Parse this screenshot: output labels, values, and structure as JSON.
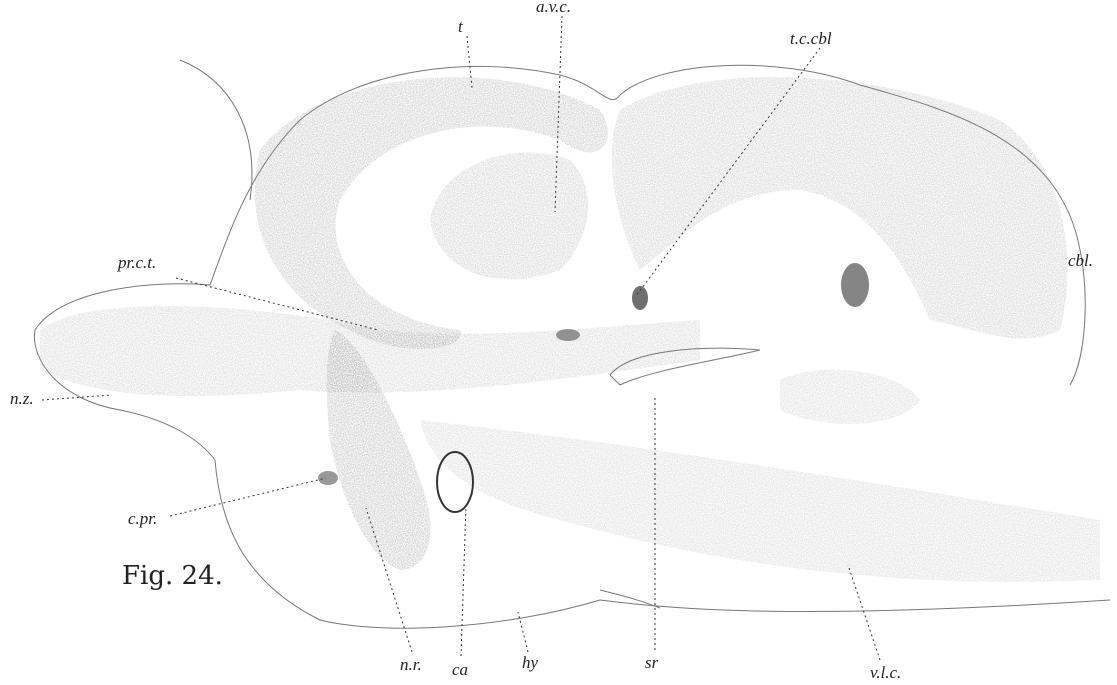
{
  "figure": {
    "caption": "Fig. 24."
  },
  "labels": [
    {
      "text": "t"
    },
    {
      "text": "a.v.c."
    },
    {
      "text": "t.c.cbl"
    },
    {
      "text": "cbl."
    },
    {
      "text": "pr.c.t."
    },
    {
      "text": "n.z."
    },
    {
      "text": "c.pr."
    },
    {
      "text": "n.r."
    },
    {
      "text": "ca"
    },
    {
      "text": "hy"
    },
    {
      "text": "sr"
    },
    {
      "text": "v.l.c."
    }
  ]
}
